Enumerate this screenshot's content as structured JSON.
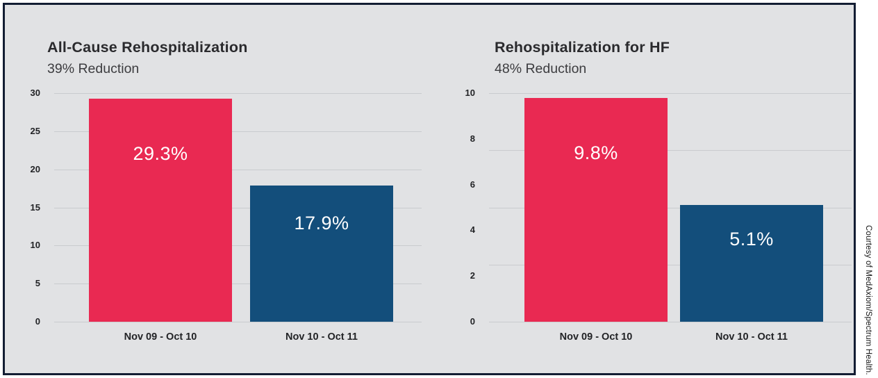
{
  "page": {
    "credit": "Courtesy of MedAxiom/Spectrum Health.",
    "background": "#ffffff",
    "panel_background": "#e1e2e4",
    "panel_border_color": "#131d33"
  },
  "chart_data": [
    {
      "type": "bar",
      "title": "All-Cause Rehospitalization",
      "subtitle": "39% Reduction",
      "categories": [
        "Nov 09 - Oct 10",
        "Nov 10 - Oct 11"
      ],
      "values": [
        29.3,
        17.9
      ],
      "value_labels": [
        "29.3%",
        "17.9%"
      ],
      "ylim": [
        0,
        30
      ],
      "yticks": [
        30,
        25,
        20,
        15,
        10,
        5,
        0
      ],
      "gridline_count": 7,
      "grid": "horizontal",
      "legend": "none",
      "series_colors": [
        "#e92952",
        "#134e7b"
      ]
    },
    {
      "type": "bar",
      "title": "Rehospitalization for HF",
      "subtitle": "48% Reduction",
      "categories": [
        "Nov 09 - Oct 10",
        "Nov 10 - Oct 11"
      ],
      "values": [
        9.8,
        5.1
      ],
      "value_labels": [
        "9.8%",
        "5.1%"
      ],
      "ylim": [
        0,
        10
      ],
      "yticks": [
        10,
        8,
        6,
        4,
        2,
        0
      ],
      "gridline_count": 5,
      "grid": "horizontal",
      "legend": "none",
      "series_colors": [
        "#e92952",
        "#134e7b"
      ]
    }
  ]
}
